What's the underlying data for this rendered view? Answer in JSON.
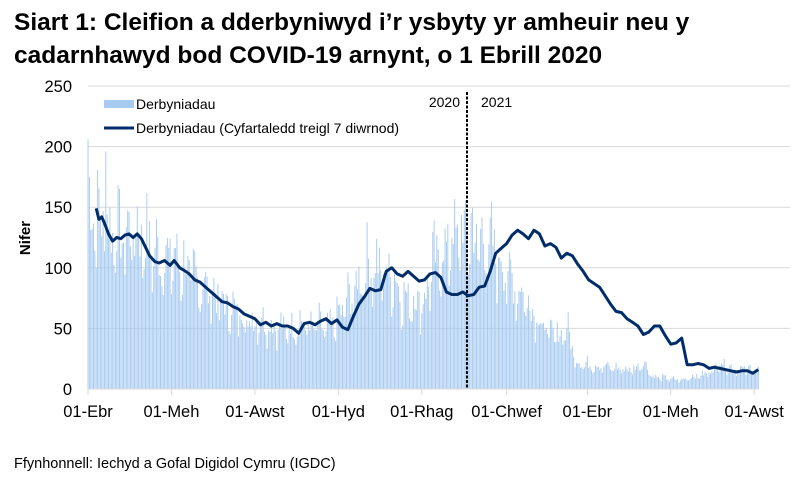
{
  "title": "Siart 1: Cleifion a dderbyniwyd i’r ysbyty yr amheuir neu y cadarnhawyd bod COVID-19 arnynt, o 1 Ebrill 2020",
  "source": "Ffynhonnell: Iechyd a Gofal Digidol Cymru (IGDC)",
  "colors": {
    "bars": "#a6caf0",
    "line": "#002d6a",
    "grid": "#d9d9d9",
    "divider": "#000000"
  },
  "chart_data": {
    "type": "bar+line",
    "title": "Siart 1: Cleifion a dderbyniwyd i’r ysbyty yr amheuir neu y cadarnhawyd bod COVID-19 arnynt, o 1 Ebrill 2020",
    "xlabel": "",
    "ylabel": "Nifer",
    "ylim": [
      0,
      250
    ],
    "yticks": [
      0,
      50,
      100,
      150,
      200,
      250
    ],
    "grid": true,
    "legend_position": "top-left inside",
    "x_start": "2020-04-01",
    "x_tick_labels": [
      "01-Ebr",
      "01-Meh",
      "01-Awst",
      "01-Hyd",
      "01-Rhag",
      "01-Chwef",
      "01-Ebr",
      "01-Meh",
      "01-Awst"
    ],
    "x_tick_days": [
      0,
      61,
      122,
      183,
      244,
      306,
      365,
      426,
      487
    ],
    "annotations": [
      {
        "label_left": "2020",
        "label_right": "2021",
        "day": 275,
        "style": "dashed vertical line"
      }
    ],
    "series": [
      {
        "name": "Derbyniadau",
        "kind": "bar",
        "note": "daily admissions, generated from anchor values plus weekly variation",
        "anchor_days": [
          0,
          3,
          7,
          14,
          21,
          28,
          35,
          42,
          49,
          56,
          63,
          70,
          77,
          84,
          91,
          98,
          105,
          112,
          119,
          126,
          133,
          140,
          147,
          154,
          161,
          168,
          175,
          182,
          189,
          196,
          203,
          210,
          217,
          224,
          231,
          238,
          245,
          252,
          259,
          266,
          273,
          280,
          287,
          294,
          301,
          308,
          315,
          322,
          329,
          336,
          343,
          350,
          357,
          364,
          371,
          378,
          385,
          392,
          399,
          406,
          413,
          420,
          427,
          434,
          441,
          448,
          455,
          462,
          469,
          476,
          483,
          490
        ],
        "anchor_values": [
          150,
          145,
          140,
          130,
          128,
          125,
          130,
          120,
          110,
          108,
          105,
          100,
          90,
          85,
          78,
          70,
          65,
          60,
          55,
          57,
          52,
          50,
          48,
          55,
          50,
          52,
          48,
          57,
          70,
          82,
          100,
          98,
          95,
          90,
          72,
          73,
          70,
          100,
          108,
          122,
          125,
          128,
          118,
          115,
          105,
          90,
          80,
          70,
          58,
          48,
          42,
          50,
          22,
          20,
          19,
          18,
          17,
          16,
          16,
          22,
          10,
          9,
          8,
          7,
          10,
          11,
          14,
          22,
          17,
          16,
          16,
          16
        ]
      },
      {
        "name": "Derbyniadau  (Cyfartaledd treigl 7 diwrnod)",
        "kind": "line",
        "days": [
          6,
          8,
          10,
          12,
          15,
          18,
          21,
          24,
          27,
          30,
          33,
          36,
          39,
          42,
          45,
          49,
          52,
          56,
          60,
          63,
          67,
          70,
          74,
          78,
          82,
          86,
          90,
          94,
          98,
          102,
          106,
          110,
          114,
          118,
          122,
          126,
          130,
          134,
          138,
          142,
          146,
          150,
          154,
          158,
          162,
          166,
          170,
          174,
          178,
          182,
          186,
          190,
          194,
          198,
          202,
          206,
          210,
          214,
          218,
          222,
          226,
          230,
          234,
          238,
          242,
          246,
          250,
          254,
          258,
          262,
          266,
          270,
          274,
          278,
          282,
          286,
          290,
          294,
          298,
          302,
          306,
          310,
          314,
          318,
          322,
          326,
          330,
          334,
          338,
          342,
          346,
          350,
          354,
          358,
          362,
          366,
          370,
          374,
          378,
          382,
          386,
          390,
          394,
          398,
          402,
          406,
          410,
          414,
          418,
          422,
          426,
          430,
          434,
          438,
          442,
          446,
          450,
          454,
          458,
          462,
          466,
          470,
          474,
          478,
          482,
          486,
          490
        ],
        "values": [
          149,
          140,
          142,
          137,
          128,
          122,
          125,
          124,
          127,
          128,
          125,
          128,
          124,
          117,
          110,
          105,
          104,
          106,
          102,
          106,
          100,
          98,
          95,
          90,
          88,
          84,
          80,
          76,
          72,
          71,
          68,
          66,
          62,
          60,
          58,
          53,
          55,
          52,
          54,
          52,
          52,
          50,
          46,
          54,
          55,
          53,
          56,
          58,
          54,
          57,
          51,
          49,
          60,
          70,
          76,
          83,
          81,
          82,
          97,
          100,
          95,
          93,
          97,
          93,
          89,
          90,
          95,
          96,
          92,
          80,
          78,
          78,
          80,
          77,
          78,
          84,
          85,
          97,
          112,
          116,
          120,
          127,
          131,
          128,
          124,
          131,
          128,
          118,
          120,
          117,
          108,
          112,
          110,
          103,
          97,
          90,
          87,
          84,
          77,
          70,
          64,
          63,
          58,
          55,
          52,
          45,
          47,
          52,
          52,
          44,
          37,
          38,
          42,
          20,
          20,
          21,
          20,
          17,
          18,
          17,
          16,
          15,
          14,
          15,
          15,
          13,
          16
        ]
      }
    ]
  }
}
